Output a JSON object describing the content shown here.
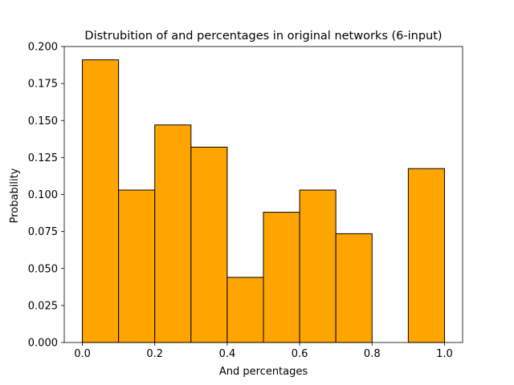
{
  "chart_data": {
    "type": "bar",
    "title": "Distrubition of and percentages in original networks (6-input)",
    "xlabel": "And percentages",
    "ylabel": "Probability",
    "bins": [
      {
        "x0": 0.0,
        "x1": 0.1,
        "value": 0.191
      },
      {
        "x0": 0.1,
        "x1": 0.2,
        "value": 0.103
      },
      {
        "x0": 0.2,
        "x1": 0.3,
        "value": 0.147
      },
      {
        "x0": 0.3,
        "x1": 0.4,
        "value": 0.132
      },
      {
        "x0": 0.4,
        "x1": 0.5,
        "value": 0.044
      },
      {
        "x0": 0.5,
        "x1": 0.6,
        "value": 0.088
      },
      {
        "x0": 0.6,
        "x1": 0.7,
        "value": 0.103
      },
      {
        "x0": 0.7,
        "x1": 0.8,
        "value": 0.0735
      },
      {
        "x0": 0.8,
        "x1": 0.9,
        "value": 0.0
      },
      {
        "x0": 0.9,
        "x1": 1.0,
        "value": 0.1175
      }
    ],
    "xlim": [
      -0.05,
      1.05
    ],
    "ylim": [
      0.0,
      0.2
    ],
    "xticks": [
      {
        "value": 0.0,
        "label": "0.0"
      },
      {
        "value": 0.2,
        "label": "0.2"
      },
      {
        "value": 0.4,
        "label": "0.4"
      },
      {
        "value": 0.6,
        "label": "0.6"
      },
      {
        "value": 0.8,
        "label": "0.8"
      },
      {
        "value": 1.0,
        "label": "1.0"
      }
    ],
    "yticks": [
      {
        "value": 0.0,
        "label": "0.000"
      },
      {
        "value": 0.025,
        "label": "0.025"
      },
      {
        "value": 0.05,
        "label": "0.050"
      },
      {
        "value": 0.075,
        "label": "0.075"
      },
      {
        "value": 0.1,
        "label": "0.100"
      },
      {
        "value": 0.125,
        "label": "0.125"
      },
      {
        "value": 0.15,
        "label": "0.150"
      },
      {
        "value": 0.175,
        "label": "0.175"
      },
      {
        "value": 0.2,
        "label": "0.200"
      }
    ],
    "bar_color": "#ffa500",
    "edge_color": "#000000",
    "grid": false,
    "legend": "none"
  }
}
